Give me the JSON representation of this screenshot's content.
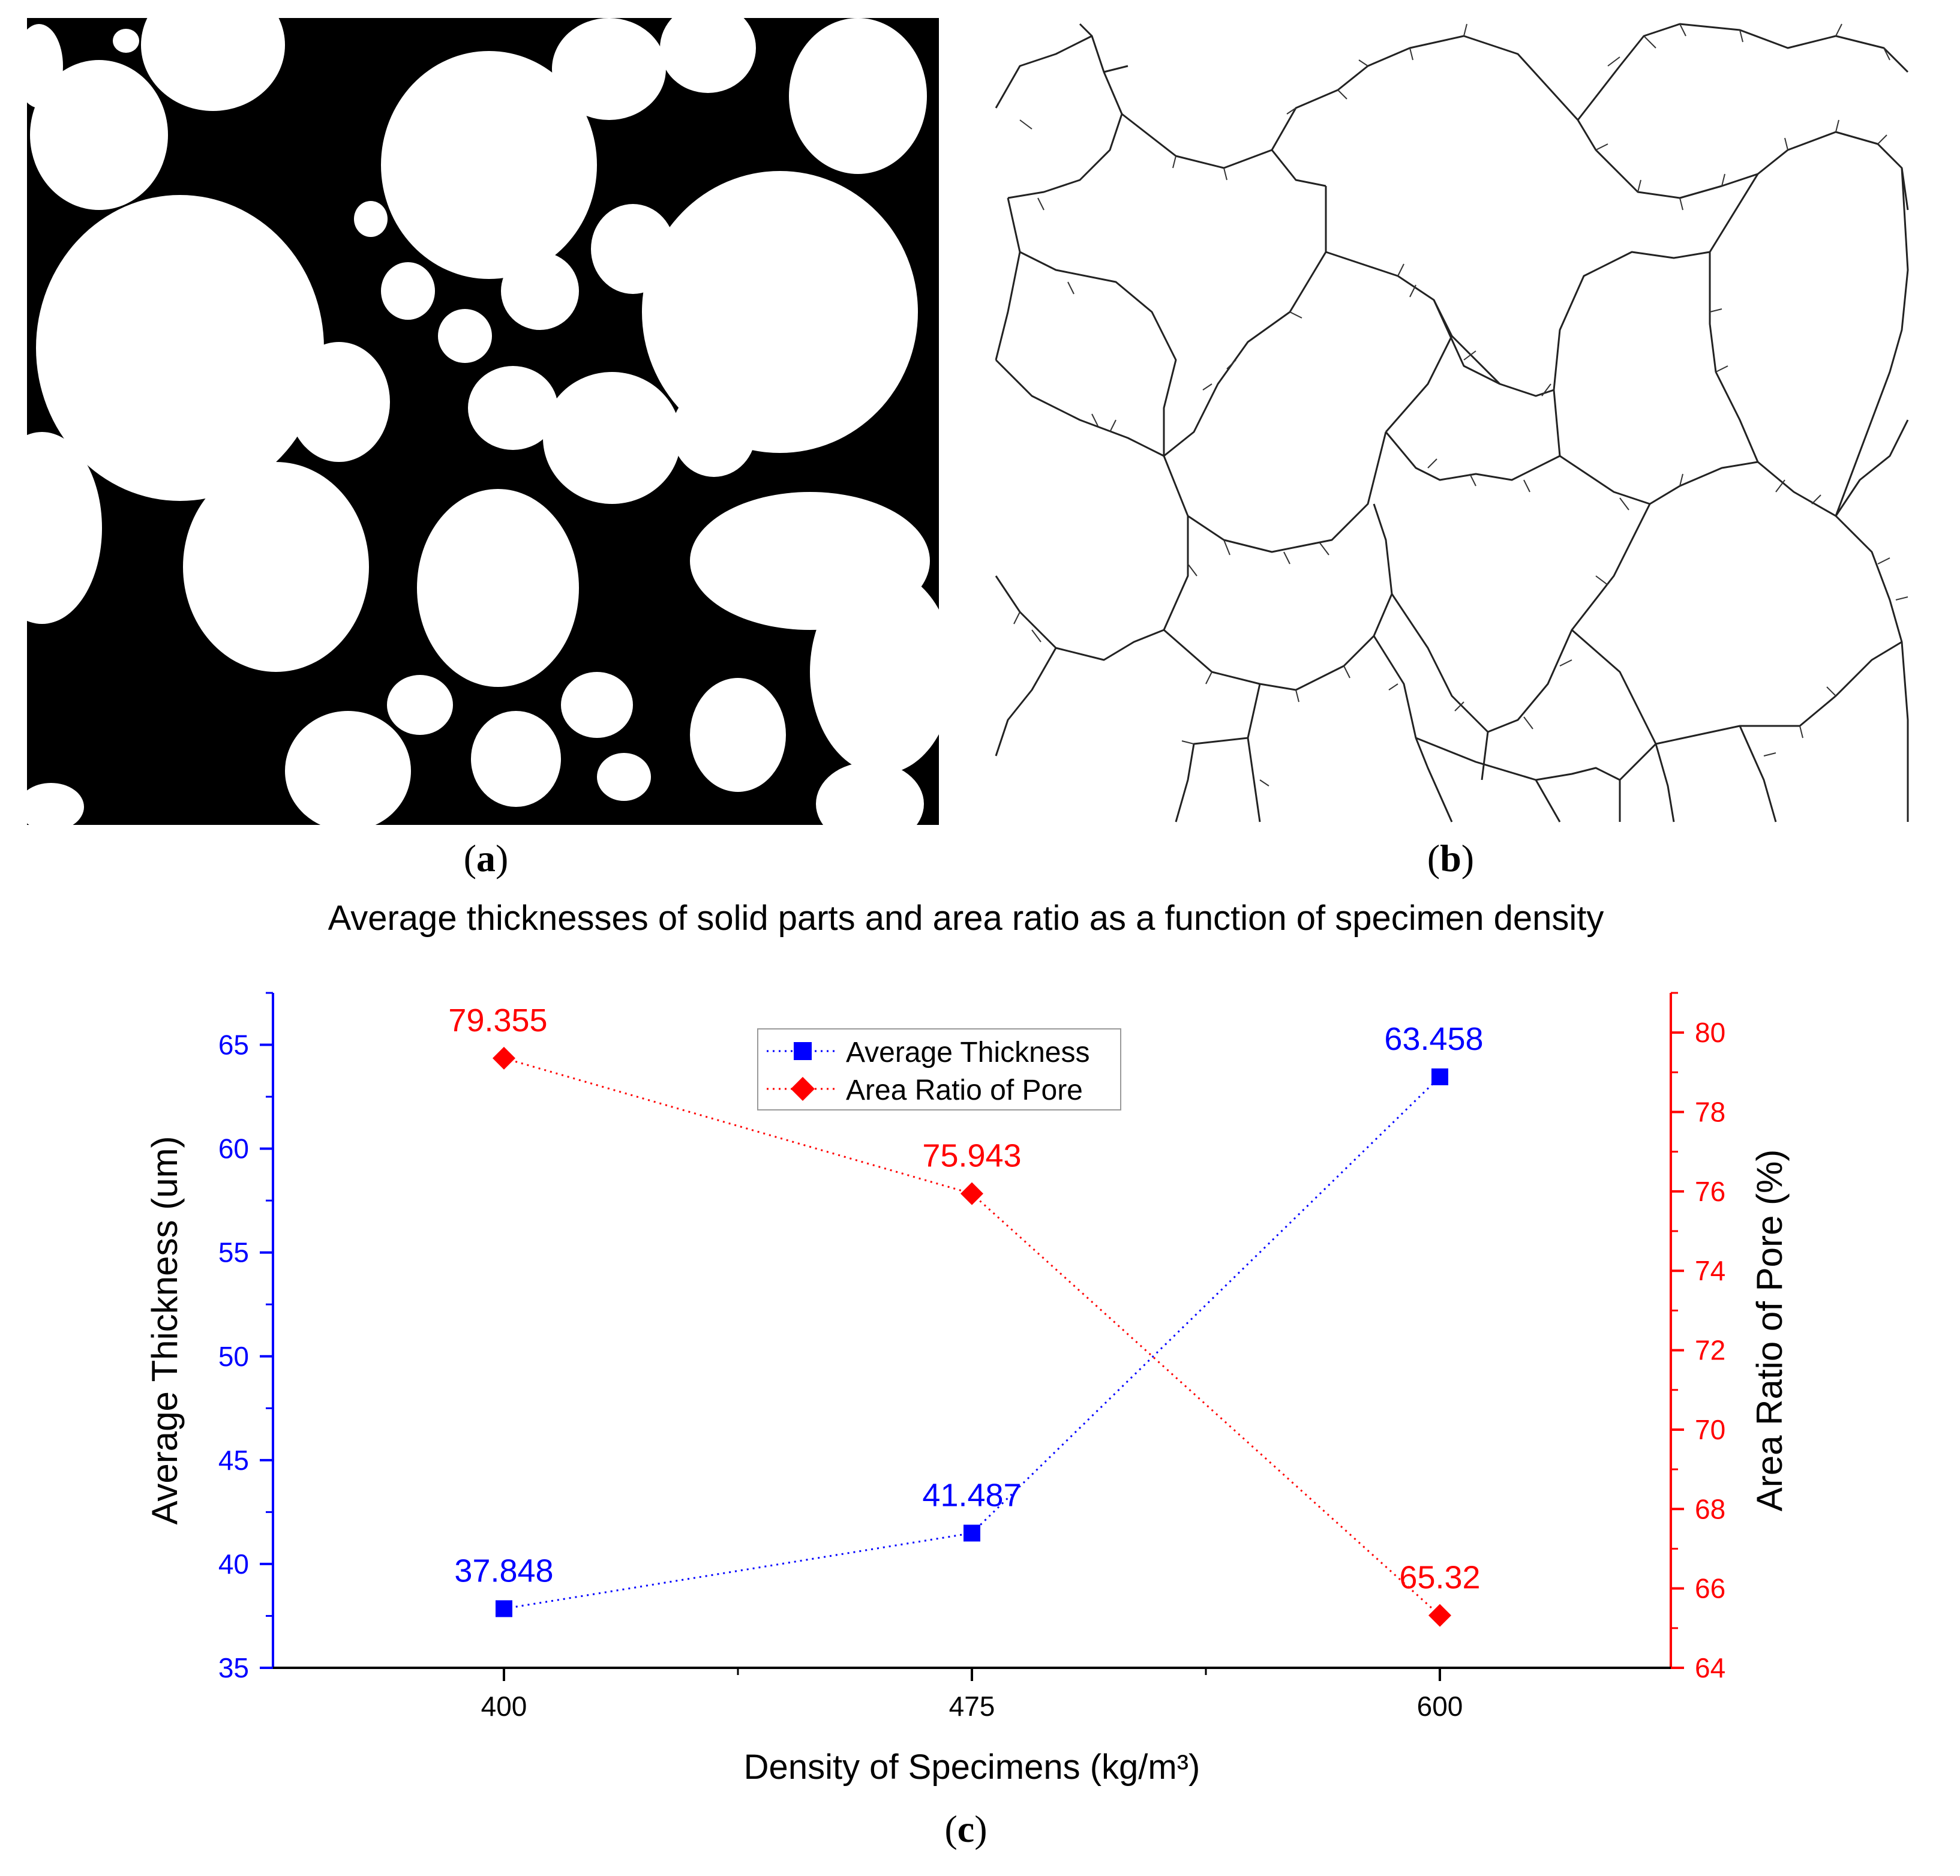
{
  "panels": {
    "a": {
      "paren_open": "(",
      "letter": "a",
      "paren_close": ")"
    },
    "b": {
      "paren_open": "(",
      "letter": "b",
      "paren_close": ")"
    },
    "c": {
      "paren_open": "(",
      "letter": "c",
      "paren_close": ")"
    }
  },
  "chart_data": {
    "type": "line",
    "title": "Average thicknesses of solid parts and area ratio as a function of specimen density",
    "xlabel": "Density of Specimens (kg/m³)",
    "categories": [
      "400",
      "475",
      "600"
    ],
    "y_left": {
      "label": "Average Thickness (um)",
      "range": [
        35,
        67.5
      ],
      "ticks": [
        35,
        40,
        45,
        50,
        55,
        60,
        65
      ],
      "color": "#0000ff"
    },
    "y_right": {
      "label": "Area Ratio of Pore (%)",
      "range": [
        64,
        81
      ],
      "ticks": [
        64,
        66,
        68,
        70,
        72,
        74,
        76,
        78,
        80
      ],
      "color": "#ff0000"
    },
    "series": [
      {
        "name": "Average Thickness",
        "axis": "left",
        "marker": "square",
        "line": "dotted",
        "color": "#0000ff",
        "values": [
          37.848,
          41.487,
          63.458
        ],
        "labels": [
          "37.848",
          "41.487",
          "63.458"
        ]
      },
      {
        "name": "Area Ratio of Pore",
        "axis": "right",
        "marker": "diamond",
        "line": "dotted",
        "color": "#ff0000",
        "values": [
          79.355,
          75.943,
          65.32
        ],
        "labels": [
          "79.355",
          "75.943",
          "65.32"
        ]
      }
    ],
    "legend_position": "top-center"
  }
}
